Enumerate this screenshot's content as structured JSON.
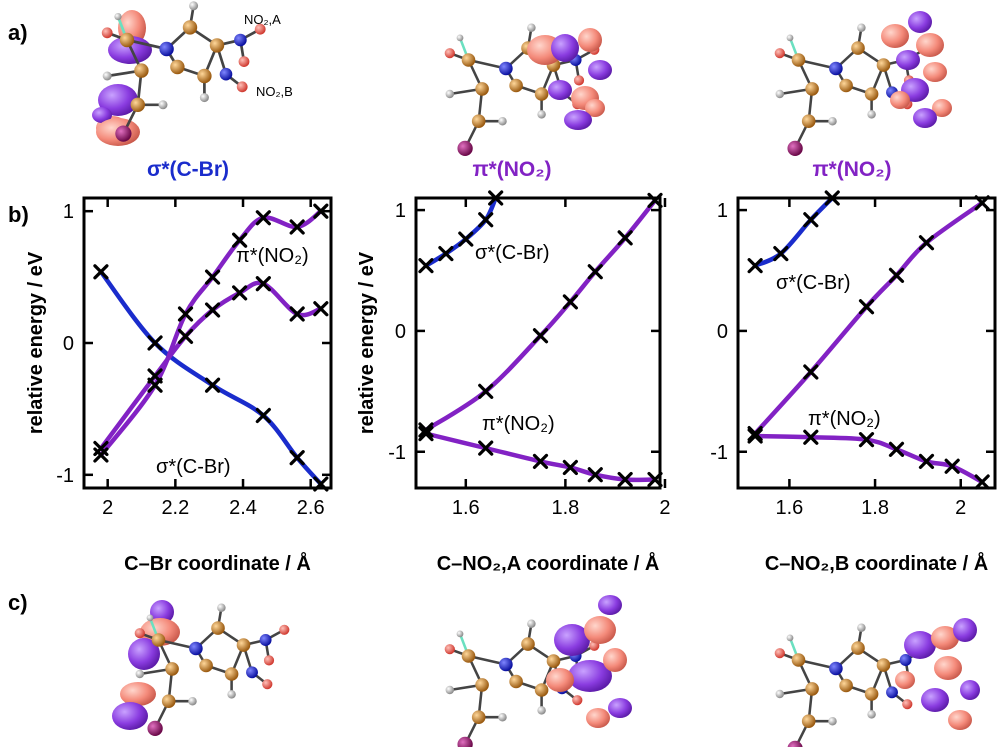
{
  "panel_labels": {
    "a": "a)",
    "b": "b)",
    "c": "c)"
  },
  "orbital_labels": [
    "σ*(C-Br)",
    "π*(NO₂)",
    "π*(NO₂)"
  ],
  "molecule_labels": {
    "no2a": "NO₂,A",
    "no2b": "NO₂,B"
  },
  "colors": {
    "sigma": "#1a2ccc",
    "pi": "#8222c4",
    "lobe_pink": "#f48a7a",
    "lobe_purple": "#8a3ce0",
    "carbon": "#b8761e",
    "nitrogen": "#1a22cc",
    "oxygen": "#f05a50",
    "bromine": "#9a1070",
    "hydrogen": "#b0b0b0",
    "fluorine": "#6be0c0"
  },
  "chart_data": [
    {
      "type": "line",
      "xlabel": "C–Br coordinate / Å",
      "ylabel": "relative energy / eV",
      "xlim": [
        1.93,
        2.66
      ],
      "ylim": [
        -1.1,
        1.1
      ],
      "xticks": [
        2,
        2.2,
        2.4,
        2.6
      ],
      "yticks": [
        -1,
        0,
        1
      ],
      "series": [
        {
          "name": "σ*(C-Br)",
          "color": "#1a2ccc",
          "x": [
            1.98,
            2.14,
            2.31,
            2.46,
            2.56,
            2.63
          ],
          "y": [
            0.54,
            0.0,
            -0.32,
            -0.55,
            -0.87,
            -1.07
          ]
        },
        {
          "name": "π*(NO₂)",
          "color": "#8222c4",
          "x": [
            1.98,
            2.14,
            2.23,
            2.31,
            2.39,
            2.46,
            2.56,
            2.63
          ],
          "y": [
            -0.85,
            -0.32,
            0.22,
            0.5,
            0.78,
            0.95,
            0.88,
            1.0
          ]
        },
        {
          "name": "π*(NO₂)",
          "color": "#8222c4",
          "x": [
            1.98,
            2.14,
            2.23,
            2.31,
            2.39,
            2.46,
            2.56,
            2.63
          ],
          "y": [
            -0.8,
            -0.25,
            0.05,
            0.25,
            0.38,
            0.45,
            0.22,
            0.26
          ]
        }
      ],
      "annotations": [
        "π*(NO₂)",
        "σ*(C-Br)"
      ]
    },
    {
      "type": "line",
      "xlabel": "C–NO₂,A coordinate / Å",
      "ylabel": "relative energy / eV",
      "xlim": [
        1.5,
        1.99
      ],
      "ylim": [
        -1.3,
        1.1
      ],
      "xticks": [
        1.6,
        1.8,
        2
      ],
      "yticks": [
        -1,
        0,
        1
      ],
      "series": [
        {
          "name": "σ*(C-Br)",
          "color": "#1a2ccc",
          "x": [
            1.52,
            1.56,
            1.6,
            1.64,
            1.66
          ],
          "y": [
            0.54,
            0.64,
            0.76,
            0.92,
            1.1
          ]
        },
        {
          "name": "π*(NO₂)",
          "color": "#8222c4",
          "x": [
            1.52,
            1.64,
            1.75,
            1.81,
            1.86,
            1.92,
            1.98
          ],
          "y": [
            -0.82,
            -0.5,
            -0.04,
            0.24,
            0.49,
            0.77,
            1.08
          ]
        },
        {
          "name": "π*(NO₂)",
          "color": "#8222c4",
          "x": [
            1.52,
            1.64,
            1.75,
            1.81,
            1.86,
            1.92,
            1.98
          ],
          "y": [
            -0.85,
            -0.97,
            -1.08,
            -1.13,
            -1.19,
            -1.23,
            -1.23
          ]
        }
      ],
      "annotations": [
        "σ*(C-Br)",
        "π*(NO₂)"
      ]
    },
    {
      "type": "line",
      "xlabel": "C–NO₂,B coordinate / Å",
      "ylabel": "",
      "xlim": [
        1.48,
        2.08
      ],
      "ylim": [
        -1.3,
        1.1
      ],
      "xticks": [
        1.6,
        1.8,
        2
      ],
      "yticks": [
        -1,
        0,
        1
      ],
      "series": [
        {
          "name": "σ*(C-Br)",
          "color": "#1a2ccc",
          "x": [
            1.52,
            1.58,
            1.65,
            1.7
          ],
          "y": [
            0.54,
            0.64,
            0.92,
            1.1
          ]
        },
        {
          "name": "π*(NO₂)",
          "color": "#8222c4",
          "x": [
            1.52,
            1.65,
            1.78,
            1.85,
            1.92,
            2.05
          ],
          "y": [
            -0.85,
            -0.34,
            0.2,
            0.46,
            0.73,
            1.06
          ]
        },
        {
          "name": "π*(NO₂)",
          "color": "#8222c4",
          "x": [
            1.52,
            1.65,
            1.78,
            1.85,
            1.92,
            1.98,
            2.05
          ],
          "y": [
            -0.87,
            -0.88,
            -0.9,
            -0.98,
            -1.08,
            -1.12,
            -1.25
          ]
        }
      ],
      "annotations": [
        "σ*(C-Br)",
        "π*(NO₂)"
      ]
    }
  ]
}
